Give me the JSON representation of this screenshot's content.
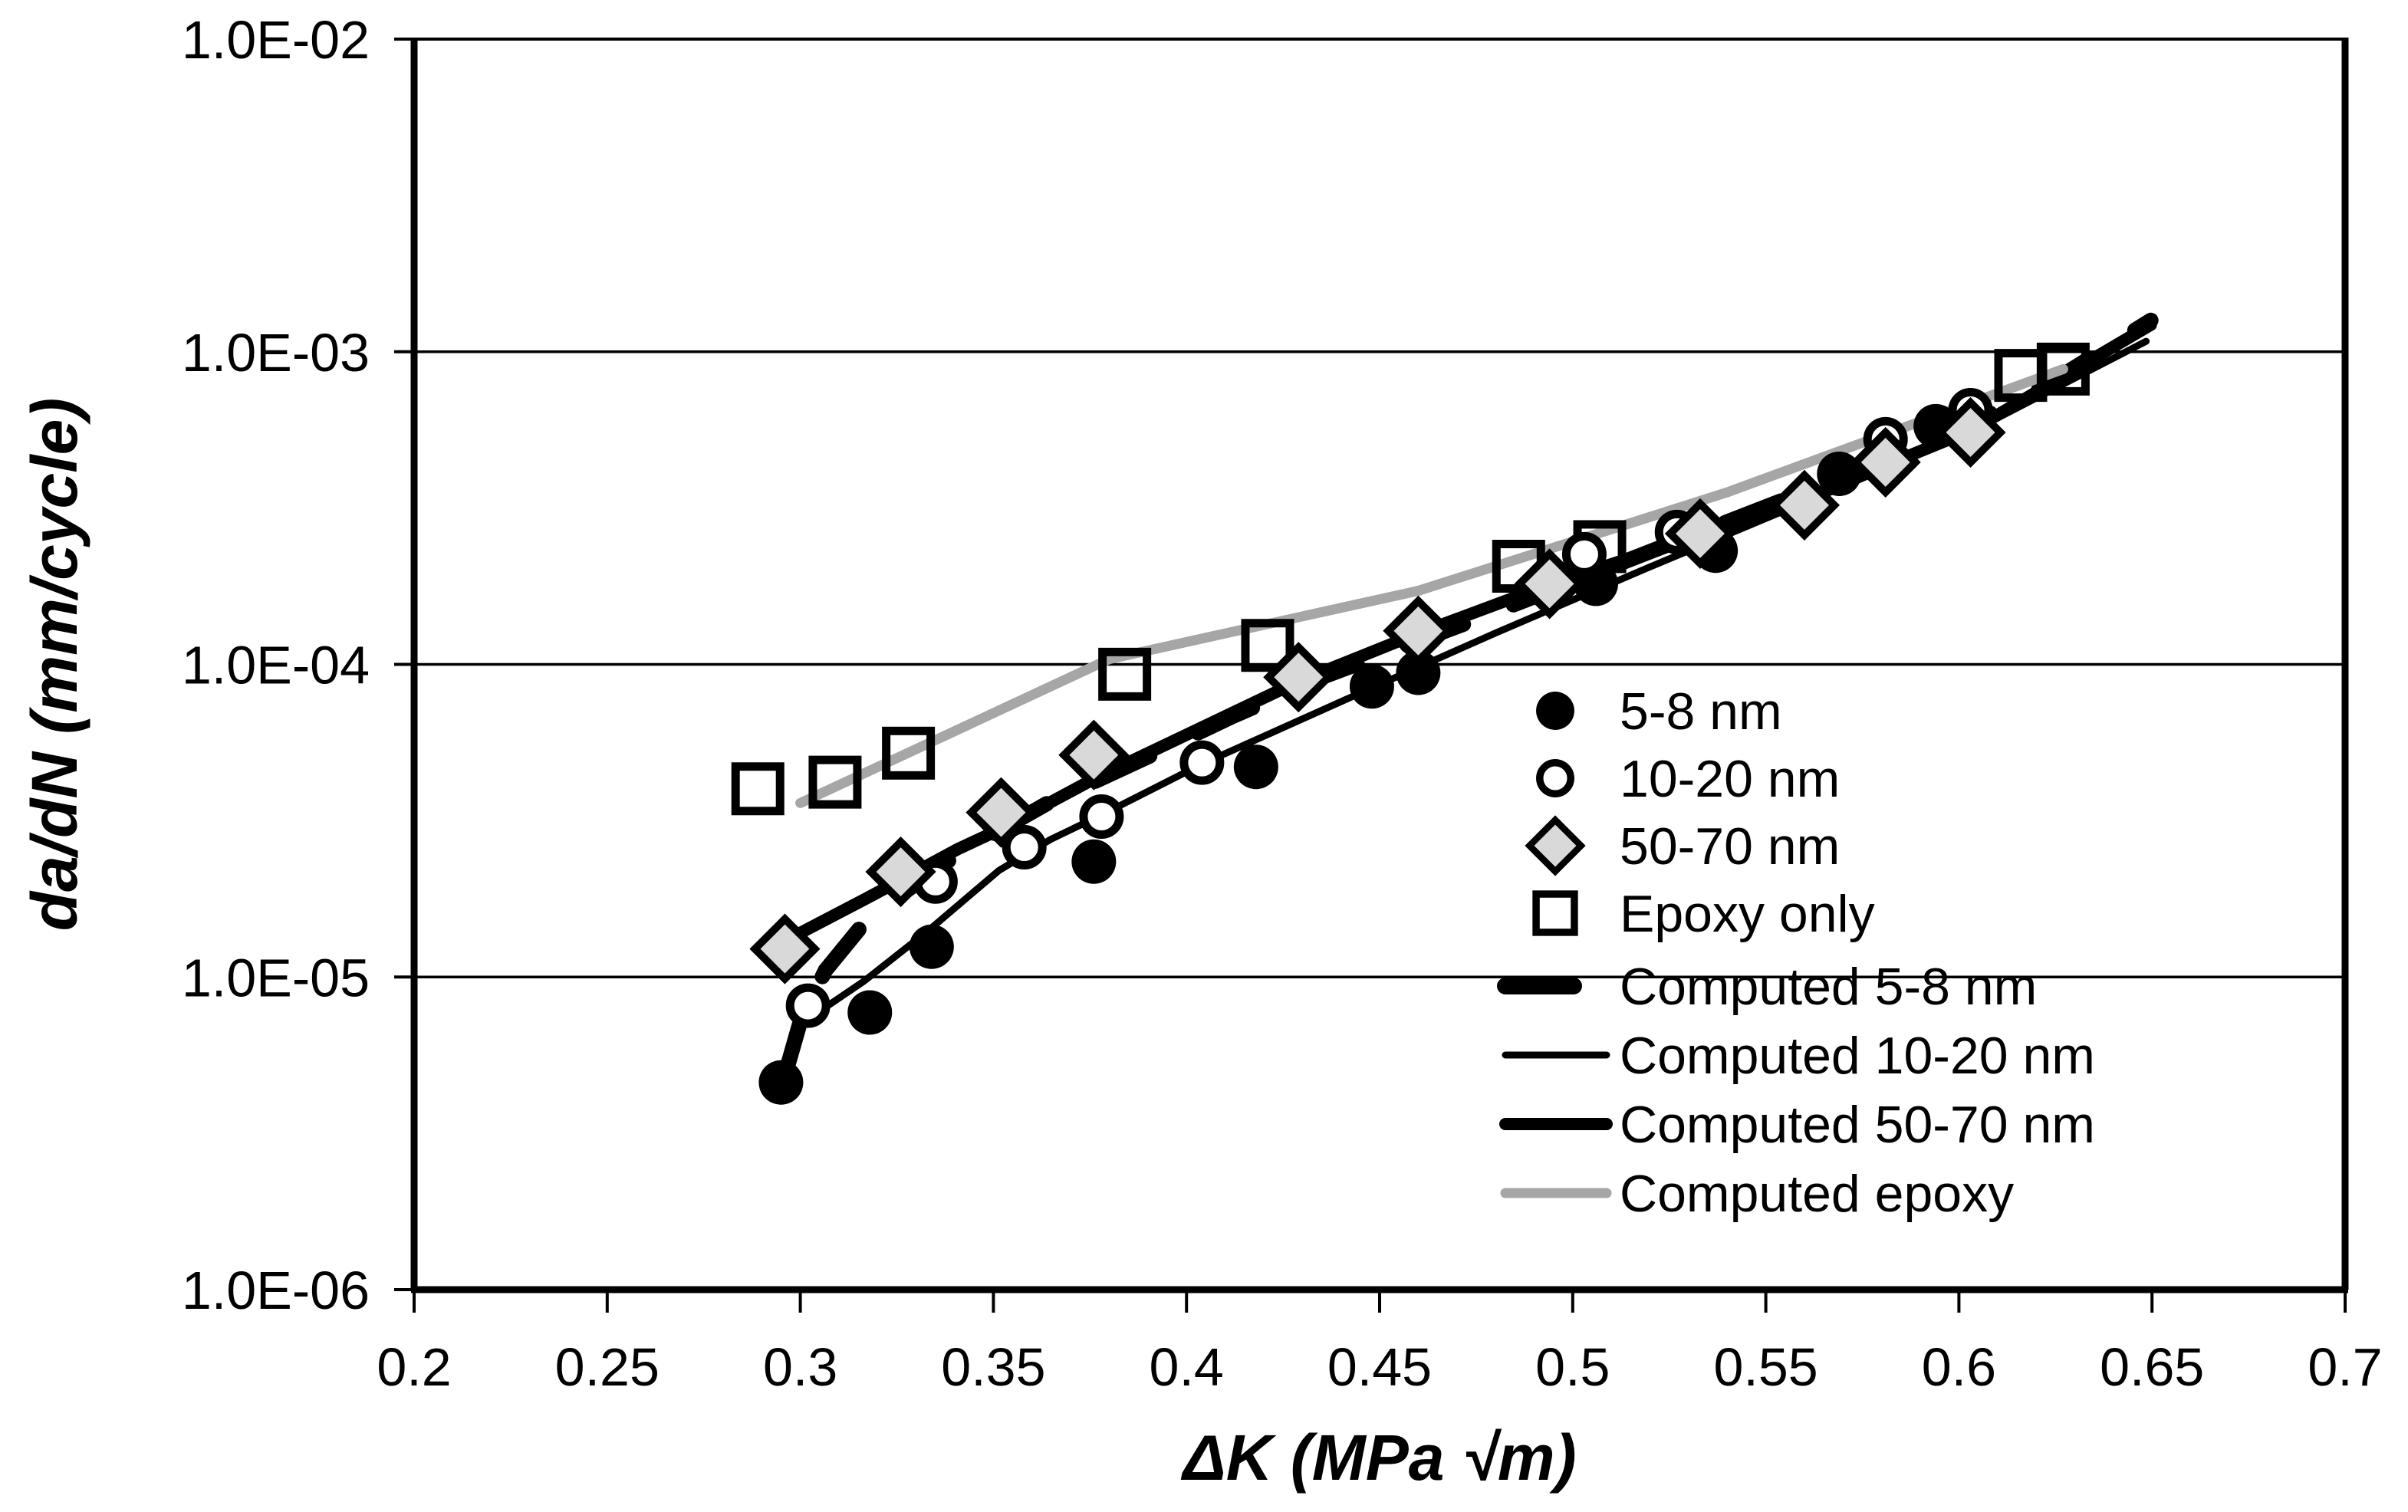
{
  "chart_data": {
    "type": "scatter",
    "title": "",
    "xlabel": "ΔK (MPa √m)",
    "ylabel": "da/dN (mm/cycle)",
    "grid": true,
    "legend_position": "inside-right",
    "axes": {
      "x": {
        "scale": "linear",
        "min": 0.2,
        "max": 0.7,
        "tick_values": [
          0.2,
          0.25,
          0.3,
          0.35,
          0.4,
          0.45,
          0.5,
          0.55,
          0.6,
          0.65,
          0.7
        ],
        "tick_labels": [
          "0.2",
          "0.25",
          "0.3",
          "0.35",
          "0.4",
          "0.45",
          "0.5",
          "0.55",
          "0.6",
          "0.65",
          "0.7"
        ]
      },
      "y": {
        "scale": "log",
        "min": 1e-06,
        "max": 0.01,
        "tick_values": [
          0.01,
          0.001,
          0.0001,
          1e-05,
          1e-06
        ],
        "tick_labels": [
          "1.0E-02",
          "1.0E-03",
          "1.0E-04",
          "1.0E-05",
          "1.0E-06"
        ],
        "gridline_values": [
          0.001,
          0.0001,
          1e-05
        ]
      }
    },
    "colors": {
      "black": "#000000",
      "diamond_fill": "#d9d9d9",
      "epoxy_gray": "#a6a6a6"
    },
    "series": [
      {
        "name": "5-8 nm",
        "kind": "scatter",
        "marker": "filled-circle",
        "color": "#000000",
        "points": [
          [
            0.295,
            4.6e-06
          ],
          [
            0.318,
            7.7e-06
          ],
          [
            0.334,
            1.25e-05
          ],
          [
            0.376,
            2.34e-05
          ],
          [
            0.418,
            4.7e-05
          ],
          [
            0.448,
            8.5e-05
          ],
          [
            0.46,
            9.4e-05
          ],
          [
            0.506,
            0.000181
          ],
          [
            0.537,
            0.000231
          ],
          [
            0.569,
            0.000407
          ],
          [
            0.594,
            0.000578
          ]
        ]
      },
      {
        "name": "10-20 nm",
        "kind": "scatter",
        "marker": "open-circle",
        "color": "#000000",
        "points": [
          [
            0.302,
            8.1e-06
          ],
          [
            0.335,
            2.02e-05
          ],
          [
            0.358,
            2.6e-05
          ],
          [
            0.378,
            3.26e-05
          ],
          [
            0.404,
            4.85e-05
          ],
          [
            0.503,
            0.000225
          ],
          [
            0.527,
            0.000265
          ],
          [
            0.581,
            0.000525
          ],
          [
            0.603,
            0.00065
          ]
        ]
      },
      {
        "name": "50-70 nm",
        "kind": "scatter",
        "marker": "diamond",
        "color": "#000000",
        "fill": "#d9d9d9",
        "points": [
          [
            0.296,
            1.23e-05
          ],
          [
            0.326,
            2.17e-05
          ],
          [
            0.352,
            3.36e-05
          ],
          [
            0.376,
            5.13e-05
          ],
          [
            0.429,
            9.1e-05
          ],
          [
            0.46,
            0.000128
          ],
          [
            0.494,
            0.000181
          ],
          [
            0.533,
            0.000262
          ],
          [
            0.56,
            0.000323
          ],
          [
            0.581,
            0.000443
          ],
          [
            0.603,
            0.000552
          ]
        ]
      },
      {
        "name": "Epoxy only",
        "kind": "scatter",
        "marker": "open-square",
        "color": "#000000",
        "points": [
          [
            0.289,
            4e-05
          ],
          [
            0.309,
            4.2e-05
          ],
          [
            0.328,
            5.2e-05
          ],
          [
            0.384,
            9.3e-05
          ],
          [
            0.421,
            0.000115
          ],
          [
            0.486,
            0.000206
          ],
          [
            0.507,
            0.000238
          ],
          [
            0.616,
            0.00084
          ],
          [
            0.627,
            0.00088
          ]
        ]
      },
      {
        "name": "Computed 5-8 nm",
        "kind": "line",
        "style": "dashed",
        "width": 20,
        "color": "#000000",
        "points": [
          [
            0.2955,
            4.6e-06
          ],
          [
            0.3,
            7.2e-06
          ],
          [
            0.3065,
            1.05e-05
          ],
          [
            0.3177,
            1.55e-05
          ],
          [
            0.3403,
            2.45e-05
          ],
          [
            0.3641,
            3.6e-05
          ],
          [
            0.3891,
            5e-05
          ],
          [
            0.4117,
            6.8e-05
          ],
          [
            0.4361,
            9.2e-05
          ],
          [
            0.4728,
            0.000136
          ],
          [
            0.5218,
            0.000234
          ],
          [
            0.575,
            0.00042
          ],
          [
            0.618,
            0.00072
          ],
          [
            0.6497,
            0.00126
          ]
        ]
      },
      {
        "name": "Computed 10-20 nm",
        "kind": "line",
        "style": "solid",
        "width": 9,
        "color": "#000000",
        "points": [
          [
            0.2988,
            6.9e-06
          ],
          [
            0.3165,
            9.7e-06
          ],
          [
            0.3335,
            1.42e-05
          ],
          [
            0.3514,
            2.19e-05
          ],
          [
            0.3647,
            2.75e-05
          ],
          [
            0.378,
            3.3e-05
          ],
          [
            0.404,
            4.8e-05
          ],
          [
            0.44,
            7.6e-05
          ],
          [
            0.48,
            0.000126
          ],
          [
            0.52,
            0.000205
          ],
          [
            0.56,
            0.00033
          ],
          [
            0.6,
            0.00053
          ],
          [
            0.6485,
            0.00108
          ]
        ]
      },
      {
        "name": "Computed 50-70 nm",
        "kind": "line",
        "style": "solid",
        "width": 16,
        "color": "#000000",
        "points": [
          [
            0.2958,
            1.3e-05
          ],
          [
            0.3177,
            1.8e-05
          ],
          [
            0.3409,
            2.57e-05
          ],
          [
            0.3518,
            2.97e-05
          ],
          [
            0.376,
            4.3e-05
          ],
          [
            0.4288,
            8.8e-05
          ],
          [
            0.4595,
            0.000125
          ],
          [
            0.494,
            0.00018
          ],
          [
            0.5333,
            0.00026
          ],
          [
            0.5601,
            0.000335
          ],
          [
            0.5813,
            0.000435
          ],
          [
            0.6032,
            0.00056
          ],
          [
            0.6497,
            0.00122
          ]
        ]
      },
      {
        "name": "Computed epoxy",
        "kind": "line",
        "style": "solid",
        "width": 13,
        "color": "#a6a6a6",
        "points": [
          [
            0.3,
            3.6e-05
          ],
          [
            0.38,
            0.000104
          ],
          [
            0.46,
            0.000172
          ],
          [
            0.54,
            0.000355
          ],
          [
            0.627,
            0.00088
          ]
        ]
      }
    ],
    "legend_entries": [
      {
        "label": "5-8 nm",
        "swatch": "filled-circle"
      },
      {
        "label": "10-20 nm",
        "swatch": "open-circle"
      },
      {
        "label": "50-70 nm",
        "swatch": "diamond"
      },
      {
        "label": "Epoxy only",
        "swatch": "open-square"
      },
      {
        "label": "Computed 5-8 nm",
        "swatch": "dash-thick"
      },
      {
        "label": "Computed 10-20 nm",
        "swatch": "line-thin"
      },
      {
        "label": "Computed 50-70 nm",
        "swatch": "line-thick"
      },
      {
        "label": "Computed epoxy",
        "swatch": "line-gray"
      }
    ]
  }
}
